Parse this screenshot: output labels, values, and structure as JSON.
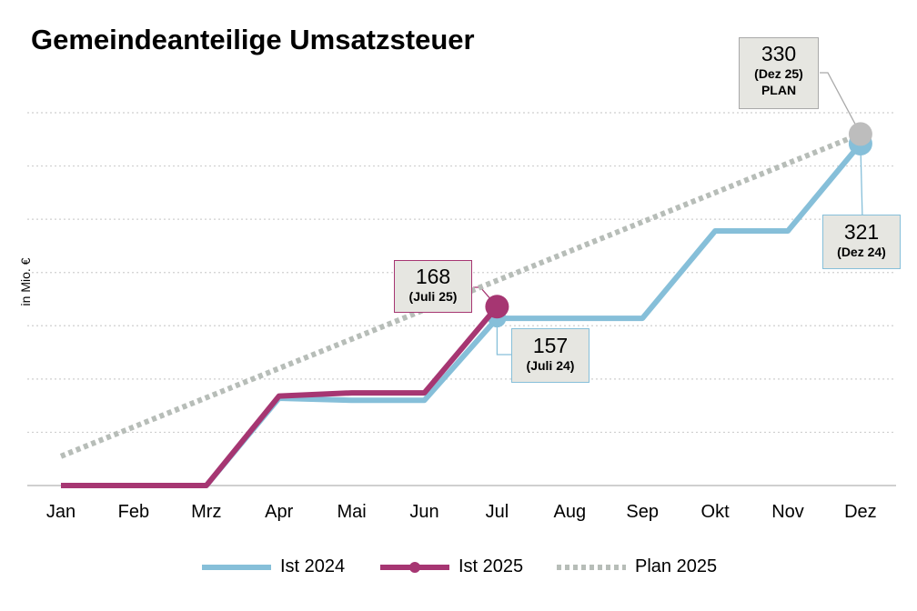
{
  "chart_data": {
    "type": "line",
    "title": "Gemeindeanteilige Umsatzsteuer",
    "ylabel": "in Mio. €",
    "xlabel": "",
    "categories": [
      "Jan",
      "Feb",
      "Mrz",
      "Apr",
      "Mai",
      "Jun",
      "Jul",
      "Aug",
      "Sep",
      "Okt",
      "Nov",
      "Dez"
    ],
    "ylim": [
      0,
      350
    ],
    "grid": true,
    "legend": "bottom",
    "series": [
      {
        "name": "Ist 2024",
        "color": "#86bfd9",
        "style": "solid",
        "values": [
          0,
          0,
          0,
          82,
          80,
          80,
          157,
          157,
          157,
          239,
          239,
          321
        ]
      },
      {
        "name": "Ist 2025",
        "color": "#a63672",
        "style": "solid-marker",
        "values": [
          0,
          0,
          0,
          84,
          87,
          87,
          168,
          null,
          null,
          null,
          null,
          null
        ]
      },
      {
        "name": "Plan 2025",
        "color": "#b7bdb8",
        "style": "dotted",
        "values": [
          27.5,
          55,
          82.5,
          110,
          137.5,
          165,
          192.5,
          220,
          247.5,
          275,
          302.5,
          330
        ]
      }
    ],
    "annotations": [
      {
        "id": "plan",
        "value": "330",
        "period": "(Dez 25)",
        "extra": "PLAN",
        "border": "#a9a9a9"
      },
      {
        "id": "ist24_dez",
        "value": "321",
        "period": "(Dez 24)",
        "border": "#86bfd9"
      },
      {
        "id": "ist25_jul",
        "value": "168",
        "period": "(Juli 25)",
        "border": "#a63672"
      },
      {
        "id": "ist24_jul",
        "value": "157",
        "period": "(Juli 24)",
        "border": "#86bfd9"
      }
    ]
  }
}
